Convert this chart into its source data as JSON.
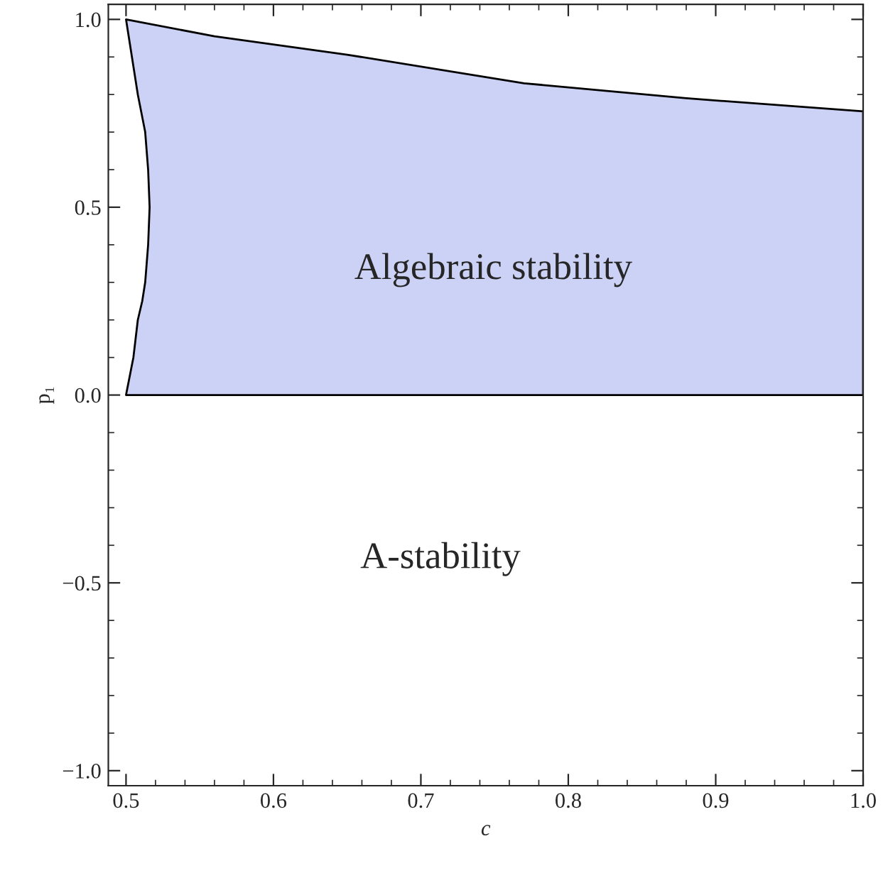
{
  "chart_data": {
    "type": "area",
    "xlabel": "c",
    "ylabel": "p₁",
    "series": [
      {
        "color": "#ccd2f5",
        "x": [
          0.5,
          0.505,
          0.508,
          0.511,
          0.513,
          0.515,
          0.516,
          0.515,
          0.513,
          0.508,
          0.504,
          0.5,
          0.56,
          0.65,
          0.77,
          0.88,
          1.0,
          1.0,
          0.5
        ],
        "values": [
          0,
          0.1,
          0.2,
          0.25,
          0.3,
          0.4,
          0.5,
          0.6,
          0.7,
          0.8,
          0.9,
          1.0,
          0.955,
          0.906,
          0.83,
          0.79,
          0.755,
          0,
          0
        ]
      }
    ],
    "annotations": [
      "Algebraic stability",
      "A-stability"
    ],
    "xlim": [
      0.488,
      1.0
    ],
    "ylim": [
      -1.04,
      1.04
    ],
    "xticks": [
      0.5,
      0.6,
      0.7,
      0.8,
      0.9,
      {
        "value": 1.0,
        "label": "1.0"
      }
    ],
    "yticks": [
      {
        "value": -1.0,
        "label": "−1.0"
      },
      {
        "value": -0.5,
        "label": "−0.5"
      },
      {
        "value": 0.0,
        "label": "0.0"
      },
      0.5,
      {
        "value": 1.0,
        "label": "1.0"
      }
    ],
    "grid": false
  }
}
